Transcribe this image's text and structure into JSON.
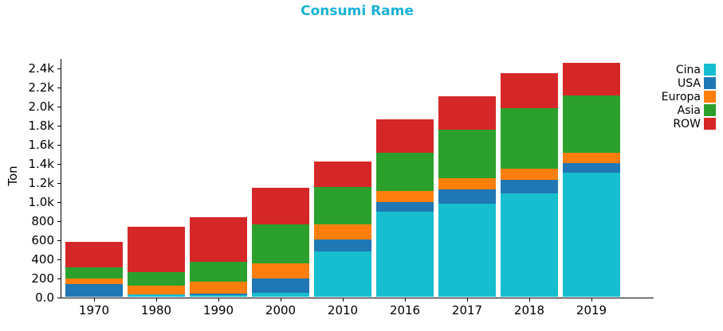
{
  "chart_data": {
    "type": "bar",
    "stacked": true,
    "title": "Consumi Rame",
    "title_color": "#17b2d4",
    "ylabel": "Ton",
    "xlabel": "",
    "categories": [
      "1970",
      "1980",
      "1990",
      "2000",
      "2010",
      "2016",
      "2017",
      "2018",
      "2019"
    ],
    "series": [
      {
        "name": "Cina",
        "color": "#17becf",
        "values": [
          0,
          25,
          20,
          45,
          475,
          890,
          975,
          1080,
          1300
        ]
      },
      {
        "name": "USA",
        "color": "#1f77b4",
        "values": [
          130,
          0,
          15,
          150,
          125,
          100,
          150,
          145,
          100
        ]
      },
      {
        "name": "Europa",
        "color": "#ff7f0e",
        "values": [
          65,
          95,
          120,
          155,
          155,
          115,
          115,
          115,
          110
        ]
      },
      {
        "name": "Asia",
        "color": "#2ca02c",
        "values": [
          110,
          135,
          210,
          405,
          395,
          400,
          510,
          635,
          600
        ]
      },
      {
        "name": "ROW",
        "color": "#d62728",
        "values": [
          270,
          480,
          470,
          385,
          270,
          350,
          350,
          370,
          340
        ]
      }
    ],
    "totals": [
      575,
      735,
      835,
      1140,
      1420,
      1855,
      2100,
      2345,
      2450
    ],
    "y_ticks": [
      {
        "label": "0.0",
        "value": 0
      },
      {
        "label": "200",
        "value": 200
      },
      {
        "label": "400",
        "value": 400
      },
      {
        "label": "600",
        "value": 600
      },
      {
        "label": "800",
        "value": 800
      },
      {
        "label": "1.0k",
        "value": 1000
      },
      {
        "label": "1.2k",
        "value": 1200
      },
      {
        "label": "1.4k",
        "value": 1400
      },
      {
        "label": "1.6k",
        "value": 1600
      },
      {
        "label": "1.8k",
        "value": 1800
      },
      {
        "label": "2.0k",
        "value": 2000
      },
      {
        "label": "2.2k",
        "value": 2200
      },
      {
        "label": "2.4k",
        "value": 2400
      }
    ],
    "ylim": [
      0,
      2500
    ],
    "grid": false,
    "legend_position": "right-outside",
    "legend_order": [
      "Cina",
      "USA",
      "Europa",
      "Asia",
      "ROW"
    ]
  }
}
